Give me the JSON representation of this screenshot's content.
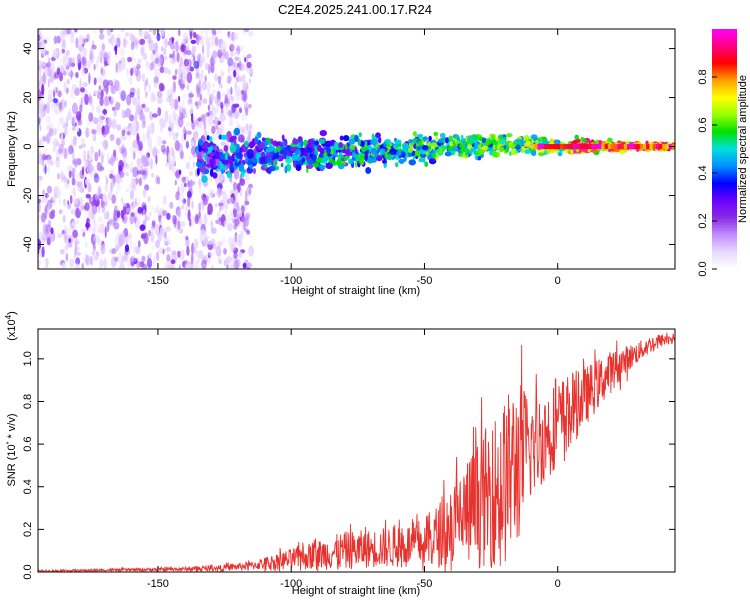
{
  "figure_title": "C2E4.2025.241.00.17.R24",
  "chart_data": [
    {
      "type": "heatmap",
      "title": "",
      "xlabel": "Height of straight line (km)",
      "ylabel": "Frequency (Hz)",
      "xlim": [
        -195,
        44
      ],
      "ylim": [
        -50,
        48
      ],
      "xticks": [
        -150,
        -100,
        -50,
        0
      ],
      "yticks": [
        -40,
        -20,
        0,
        20,
        40
      ],
      "colorbar": {
        "label": "Normalized spectral amplitude",
        "range": [
          0,
          1
        ],
        "ticks": [
          "0.0",
          "0.2",
          "0.4",
          "0.6",
          "0.8"
        ],
        "colors": [
          "#ffffff",
          "#e8d8ff",
          "#c08cff",
          "#8a2be2",
          "#6a00ff",
          "#0000ff",
          "#0090ff",
          "#00e0e0",
          "#00e000",
          "#9aff00",
          "#ffff00",
          "#ffa000",
          "#ff0000",
          "#ff0080",
          "#ff00ff"
        ]
      },
      "features": [
        {
          "name": "noise",
          "x_range": [
            -195,
            -115
          ],
          "freq_range": [
            -50,
            48
          ],
          "amplitude_range": [
            0.0,
            0.25
          ]
        },
        {
          "name": "signal band",
          "x_range": [
            -135,
            44
          ],
          "center_freq": [
            [
              -135,
              -4
            ],
            [
              -100,
              -3
            ],
            [
              -60,
              -1
            ],
            [
              -20,
              1
            ],
            [
              0,
              0
            ],
            [
              44,
              0
            ]
          ],
          "peak_amplitude_range": [
            0.3,
            1.0
          ]
        }
      ]
    },
    {
      "type": "line",
      "title": "",
      "xlabel": "Height of straight line (km)",
      "ylabel": "SNR (10 * v/v)",
      "yscale_label": "(x10",
      "yscale_exp": "4",
      "ylabel_prefix": "SNR (10",
      "ylabel_suffix": " * v/v)",
      "xlim": [
        -195,
        44
      ],
      "ylim": [
        0,
        1.14
      ],
      "xticks": [
        -150,
        -100,
        -50,
        0
      ],
      "yticks": [
        "0.0",
        "0.2",
        "0.4",
        "0.6",
        "0.8",
        "1.0"
      ],
      "series": [
        {
          "color": "#e8322e",
          "x": [
            -195,
            -180,
            -165,
            -150,
            -135,
            -125,
            -115,
            -110,
            -100,
            -90,
            -80,
            -70,
            -60,
            -55,
            -50,
            -45,
            -40,
            -35,
            -30,
            -25,
            -20,
            -15,
            -10,
            -5,
            0,
            5,
            10,
            15,
            20,
            25,
            30,
            35,
            40,
            44
          ],
          "mean": [
            0.005,
            0.007,
            0.01,
            0.012,
            0.015,
            0.02,
            0.03,
            0.04,
            0.06,
            0.08,
            0.1,
            0.11,
            0.12,
            0.13,
            0.14,
            0.17,
            0.22,
            0.27,
            0.32,
            0.37,
            0.42,
            0.52,
            0.58,
            0.64,
            0.7,
            0.76,
            0.82,
            0.88,
            0.94,
            0.99,
            1.03,
            1.07,
            1.09,
            1.1
          ],
          "noise_amplitude": [
            0.005,
            0.005,
            0.006,
            0.008,
            0.01,
            0.015,
            0.02,
            0.03,
            0.05,
            0.07,
            0.09,
            0.09,
            0.1,
            0.1,
            0.12,
            0.15,
            0.2,
            0.25,
            0.3,
            0.35,
            0.4,
            0.4,
            0.25,
            0.22,
            0.2,
            0.18,
            0.14,
            0.12,
            0.1,
            0.07,
            0.05,
            0.04,
            0.03,
            0.02
          ]
        }
      ]
    }
  ]
}
